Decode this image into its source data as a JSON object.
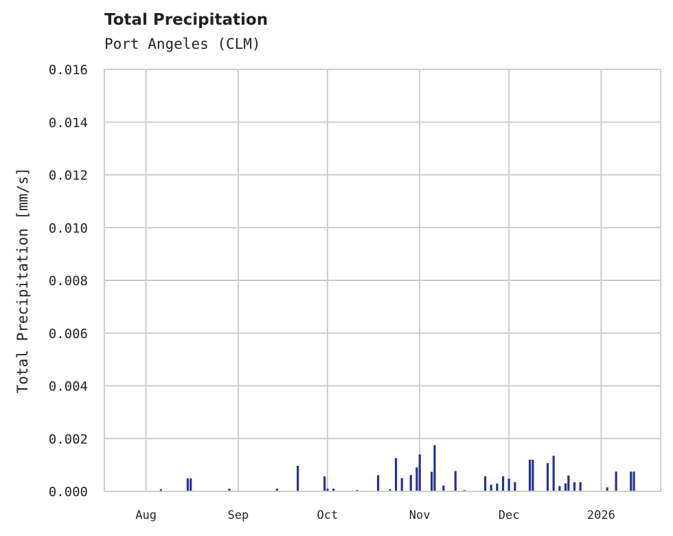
{
  "header": {
    "title": "Total Precipitation",
    "subtitle": "Port Angeles (CLM)"
  },
  "colors": {
    "series": "#24338f",
    "grid": "#cccccc",
    "frame": "#cccccc",
    "text": "#222222",
    "background": "#ffffff"
  },
  "chart_data": {
    "type": "bar",
    "title": "Total Precipitation",
    "subtitle": "Port Angeles (CLM)",
    "xlabel": "",
    "ylabel": "Total Precipitation [mm/s]",
    "ylim": [
      0,
      0.016
    ],
    "yticks": [
      "0.000",
      "0.002",
      "0.004",
      "0.006",
      "0.008",
      "0.010",
      "0.012",
      "0.014",
      "0.016"
    ],
    "xtick_labels": [
      "Aug",
      "Sep",
      "Oct",
      "Nov",
      "Dec",
      "2026"
    ],
    "xlim": [
      "2025-07-18",
      "2026-01-21"
    ],
    "grid": true,
    "legend": null,
    "series": [
      {
        "name": "Total Precipitation",
        "x": [
          "2025-08-06",
          "2025-08-15",
          "2025-08-16",
          "2025-08-29",
          "2025-09-14",
          "2025-09-21",
          "2025-09-30",
          "2025-10-01",
          "2025-10-03",
          "2025-10-11",
          "2025-10-18",
          "2025-10-22",
          "2025-10-24",
          "2025-10-26",
          "2025-10-29",
          "2025-10-31",
          "2025-11-01",
          "2025-11-05",
          "2025-11-06",
          "2025-11-09",
          "2025-11-13",
          "2025-11-16",
          "2025-11-23",
          "2025-11-25",
          "2025-11-27",
          "2025-11-29",
          "2025-12-01",
          "2025-12-03",
          "2025-12-08",
          "2025-12-09",
          "2025-12-14",
          "2025-12-16",
          "2025-12-18",
          "2025-12-20",
          "2025-12-21",
          "2025-12-23",
          "2025-12-25",
          "2026-01-03",
          "2026-01-06",
          "2026-01-11",
          "2026-01-12"
        ],
        "values": [
          8e-05,
          0.00049,
          0.00049,
          0.0001,
          0.0001,
          0.00097,
          0.00057,
          0.0001,
          0.0001,
          5e-05,
          0.00061,
          8e-05,
          0.00126,
          0.0005,
          0.00062,
          0.00091,
          0.0014,
          0.00074,
          0.00175,
          0.00022,
          0.00077,
          5e-05,
          0.00057,
          0.00025,
          0.0003,
          0.00057,
          0.00048,
          0.00035,
          0.0012,
          0.0012,
          0.00107,
          0.00135,
          0.0002,
          0.0003,
          0.0006,
          0.00035,
          0.00035,
          0.00015,
          0.00075,
          0.00075,
          0.00075
        ]
      }
    ]
  }
}
